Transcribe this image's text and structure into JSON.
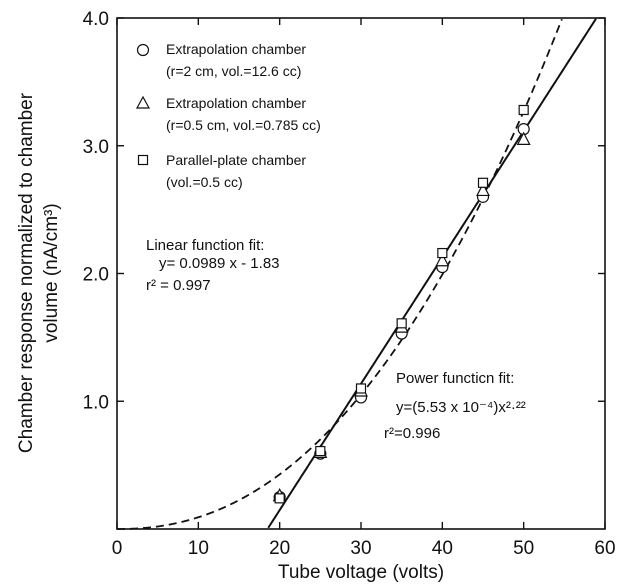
{
  "chart_data": {
    "type": "scatter",
    "title": "",
    "xlabel": "Tube voltage (volts)",
    "ylabel_lines": [
      "Chamber response normalized to chamber",
      "volume (nA/cm³)"
    ],
    "xlim": [
      0,
      60
    ],
    "ylim": [
      0,
      4.0
    ],
    "x_ticks": [
      {
        "value": 0,
        "label": "0"
      },
      {
        "value": 10,
        "label": "10"
      },
      {
        "value": 20,
        "label": "20"
      },
      {
        "value": 30,
        "label": "30"
      },
      {
        "value": 40,
        "label": "40"
      },
      {
        "value": 50,
        "label": "50"
      },
      {
        "value": 60,
        "label": "60"
      }
    ],
    "y_ticks": [
      {
        "value": 1.0,
        "label": "1.0"
      },
      {
        "value": 2.0,
        "label": "2.0"
      },
      {
        "value": 3.0,
        "label": "3.0"
      },
      {
        "value": 4.0,
        "label": "4.0"
      }
    ],
    "grid": false,
    "legend_position": "top-left",
    "series": [
      {
        "name": "Extrapolation chamber",
        "detail": "(r=2 cm, vol.=12.6 cc)",
        "marker": "circle",
        "points": [
          [
            20,
            0.25
          ],
          [
            25,
            0.59
          ],
          [
            30,
            1.03
          ],
          [
            35,
            1.53
          ],
          [
            40,
            2.05
          ],
          [
            45,
            2.6
          ],
          [
            50,
            3.13
          ]
        ]
      },
      {
        "name": "Extrapolation chamber",
        "detail": "(r=0.5 cm, vol.=0.785 cc)",
        "marker": "triangle",
        "points": [
          [
            20,
            0.26
          ],
          [
            25,
            0.6
          ],
          [
            30,
            1.08
          ],
          [
            35,
            1.58
          ],
          [
            40,
            2.1
          ],
          [
            45,
            2.65
          ],
          [
            50,
            3.05
          ]
        ]
      },
      {
        "name": "Parallel-plate chamber",
        "detail": "(vol.=0.5 cc)",
        "marker": "square",
        "points": [
          [
            20,
            0.24
          ],
          [
            25,
            0.61
          ],
          [
            30,
            1.1
          ],
          [
            35,
            1.61
          ],
          [
            40,
            2.16
          ],
          [
            45,
            2.71
          ],
          [
            50,
            3.28
          ]
        ]
      }
    ],
    "fits": [
      {
        "kind": "linear",
        "style": "solid",
        "slope": 0.0989,
        "intercept": -1.83,
        "label_lines": [
          "Linear function fit:",
          "y= 0.0989 x - 1.83",
          "r² = 0.997"
        ]
      },
      {
        "kind": "power",
        "style": "dashed",
        "coefficient": 0.000553,
        "exponent": 2.22,
        "label_lines": [
          "Power functicn fit:",
          "y=(5.53 x 10⁻⁴)x²·²²",
          "r²=0.996"
        ]
      }
    ]
  }
}
